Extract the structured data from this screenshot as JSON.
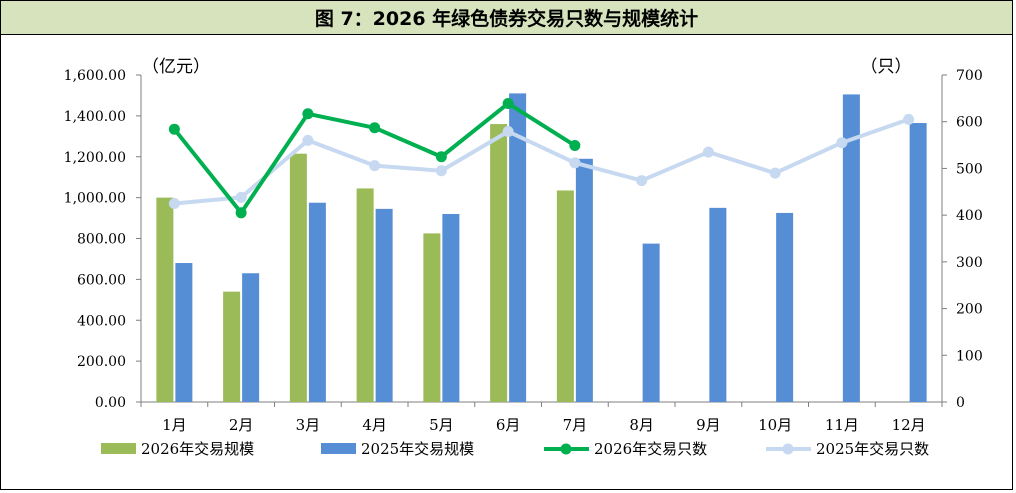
{
  "title": "图 7：2026 年绿色债券交易只数与规模统计",
  "chart_data": {
    "type": "bar+line",
    "categories": [
      "1月",
      "2月",
      "3月",
      "4月",
      "5月",
      "6月",
      "7月",
      "8月",
      "9月",
      "10月",
      "11月",
      "12月"
    ],
    "left_axis": {
      "unit": "（亿元）",
      "ylim": [
        0,
        1600
      ],
      "ticks": [
        "0.00",
        "200.00",
        "400.00",
        "600.00",
        "800.00",
        "1,000.00",
        "1,200.00",
        "1,400.00",
        "1,600.00"
      ]
    },
    "right_axis": {
      "unit": "（只）",
      "ylim": [
        0,
        700
      ],
      "ticks": [
        "0",
        "100",
        "200",
        "300",
        "400",
        "500",
        "600",
        "700"
      ]
    },
    "series": [
      {
        "name": "2026年交易规模",
        "kind": "bar",
        "axis": "left",
        "color": "#9bbb59",
        "values": [
          1000,
          540,
          1215,
          1045,
          825,
          1360,
          1035,
          null,
          null,
          null,
          null,
          null
        ]
      },
      {
        "name": "2025年交易规模",
        "kind": "bar",
        "axis": "left",
        "color": "#558ed5",
        "values": [
          680,
          630,
          975,
          945,
          920,
          1510,
          1190,
          775,
          950,
          925,
          1505,
          1365
        ]
      },
      {
        "name": "2026年交易只数",
        "kind": "line",
        "axis": "right",
        "color": "#00b050",
        "values": [
          584,
          405,
          617,
          587,
          525,
          639,
          549,
          null,
          null,
          null,
          null,
          null
        ]
      },
      {
        "name": "2025年交易只数",
        "kind": "line",
        "axis": "right",
        "color": "#c6d9f1",
        "values": [
          425,
          438,
          560,
          506,
          495,
          579,
          512,
          474,
          535,
          490,
          555,
          605
        ]
      }
    ],
    "grid": false,
    "legend_placement": "bottom"
  }
}
